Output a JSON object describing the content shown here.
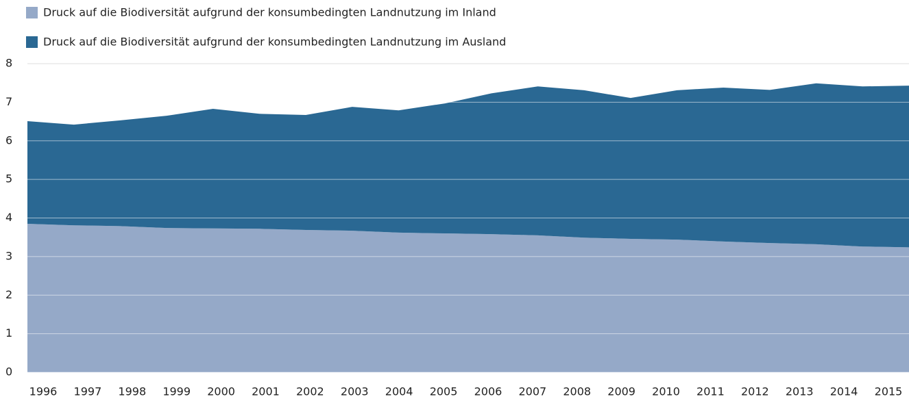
{
  "chart_data": {
    "type": "stacked-area",
    "x": [
      1996,
      1997,
      1998,
      1999,
      2000,
      2001,
      2002,
      2003,
      2004,
      2005,
      2006,
      2007,
      2008,
      2009,
      2010,
      2011,
      2012,
      2013,
      2014,
      2015
    ],
    "series": [
      {
        "name": "Druck auf die Biodiversität aufgrund der konsumbedingten Landnutzung im Inland",
        "color": "#95a9c8",
        "values": [
          3.85,
          3.81,
          3.79,
          3.74,
          3.73,
          3.72,
          3.69,
          3.67,
          3.62,
          3.6,
          3.58,
          3.55,
          3.49,
          3.46,
          3.44,
          3.39,
          3.35,
          3.32,
          3.26,
          3.24
        ]
      },
      {
        "name": "Druck auf die Biodiversität aufgrund der konsumbedingten Landnutzung im Ausland",
        "color": "#2a6893",
        "values": [
          2.66,
          2.61,
          2.74,
          2.91,
          3.1,
          2.98,
          2.98,
          3.21,
          3.17,
          3.37,
          3.65,
          3.86,
          3.82,
          3.65,
          3.87,
          3.99,
          3.97,
          4.17,
          4.15,
          4.19
        ]
      }
    ],
    "xlim": [
      1996,
      2015
    ],
    "ylim": [
      0,
      8
    ],
    "yticks": [
      0,
      1,
      2,
      3,
      4,
      5,
      6,
      7,
      8
    ],
    "grid": true
  }
}
